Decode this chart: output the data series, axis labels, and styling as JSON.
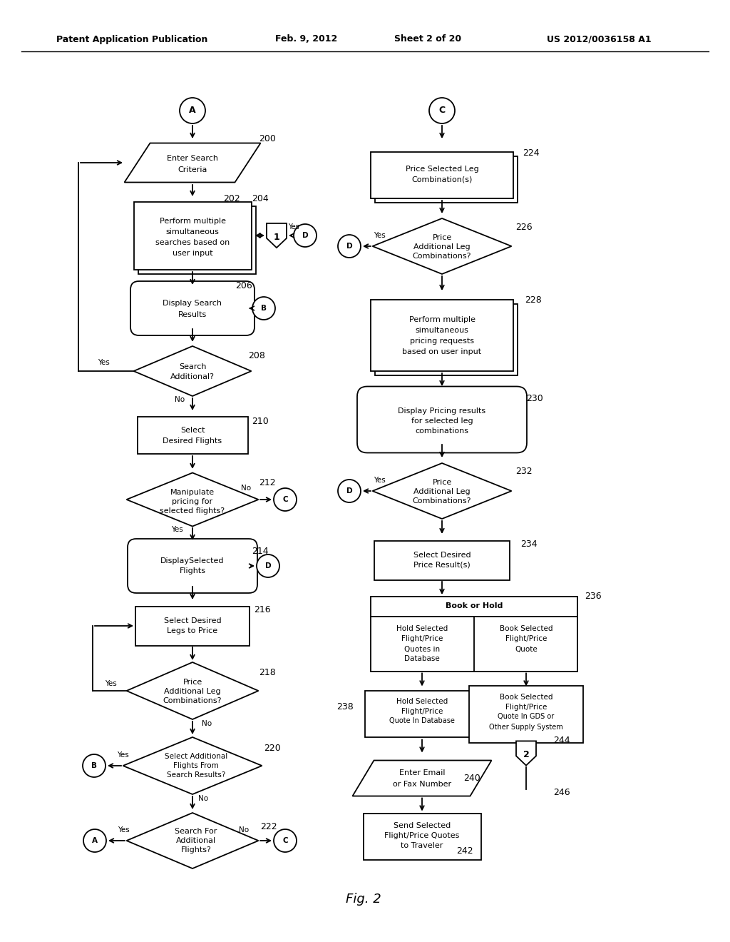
{
  "header1": "Patent Application Publication",
  "header2": "Feb. 9, 2012",
  "header3": "Sheet 2 of 20",
  "header4": "US 2012/0036158 A1",
  "fig_label": "Fig. 2",
  "bg": "#ffffff",
  "lc": "#000000",
  "tc": "#000000"
}
